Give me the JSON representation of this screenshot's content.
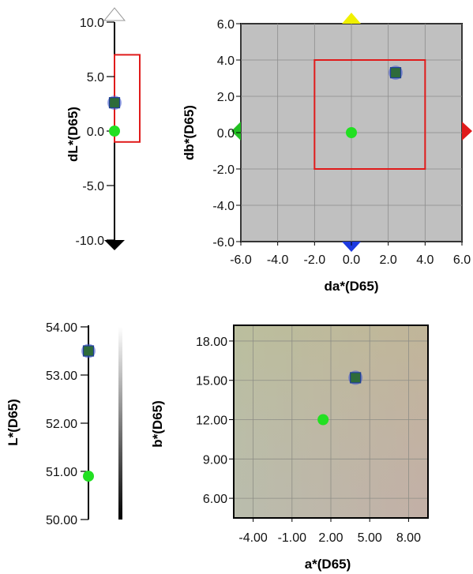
{
  "colors": {
    "grid_bg": "#c0c0c0",
    "tolerance_box": "#e01b1b",
    "sample_marker": "#2e6b3a",
    "sample_halo": "#4a5fd0",
    "standard_marker": "#22e022",
    "arrow_yellow": "#f0f000",
    "arrow_red": "#e01b1b",
    "arrow_green": "#22c022",
    "arrow_blue": "#1c3ae0"
  },
  "chart_data": [
    {
      "id": "dL",
      "type": "scatter",
      "ylabel": "dL*(D65)",
      "ylim": [
        -10,
        10
      ],
      "ticks": [
        "10.0",
        "5.0",
        "0.0",
        "-5.0",
        "-10.0"
      ],
      "tolerance": {
        "min": -1.0,
        "max": 7.0
      },
      "standard": {
        "y": 0.0
      },
      "sample": {
        "y": 2.6
      }
    },
    {
      "id": "dadb",
      "type": "scatter",
      "xlabel": "da*(D65)",
      "ylabel": "db*(D65)",
      "xlim": [
        -6,
        6
      ],
      "ylim": [
        -6,
        6
      ],
      "xticks": [
        "-6.0",
        "-4.0",
        "-2.0",
        "0.0",
        "2.0",
        "4.0",
        "6.0"
      ],
      "yticks": [
        "6.0",
        "4.0",
        "2.0",
        "0.0",
        "-2.0",
        "-4.0",
        "-6.0"
      ],
      "grid": true,
      "tolerance": {
        "xmin": -2.0,
        "xmax": 4.0,
        "ymin": -2.0,
        "ymax": 4.0
      },
      "standard": {
        "x": 0.0,
        "y": 0.0
      },
      "sample": {
        "x": 2.4,
        "y": 3.3
      }
    },
    {
      "id": "L",
      "type": "scatter",
      "ylabel": "L*(D65)",
      "ylim": [
        50,
        54
      ],
      "ticks": [
        "54.00",
        "53.00",
        "52.00",
        "51.00",
        "50.00"
      ],
      "standard": {
        "y": 50.9
      },
      "sample": {
        "y": 53.5
      }
    },
    {
      "id": "ab",
      "type": "scatter",
      "xlabel": "a*(D65)",
      "ylabel": "b*(D65)",
      "xlim": [
        -5.5,
        9.5
      ],
      "ylim": [
        4.5,
        19.2
      ],
      "xticks": [
        "-4.00",
        "-1.00",
        "2.00",
        "5.00",
        "8.00"
      ],
      "yticks": [
        "18.00",
        "15.00",
        "12.00",
        "9.00",
        "6.00"
      ],
      "grid": true,
      "standard": {
        "x": 1.4,
        "y": 12.0
      },
      "sample": {
        "x": 3.9,
        "y": 15.2
      }
    }
  ]
}
